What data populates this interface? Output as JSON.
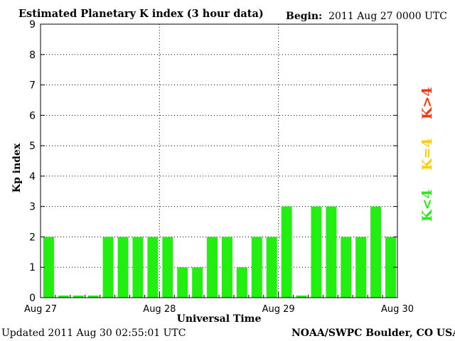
{
  "header": {
    "title": "Estimated Planetary K index (3 hour data)",
    "begin_label": "Begin:",
    "begin_value": "2011 Aug 27 0000 UTC"
  },
  "footer": {
    "updated_label": "Updated",
    "updated_value": "2011 Aug 30 02:55:01 UTC",
    "credit": "NOAA/SWPC Boulder, CO USA"
  },
  "legend": [
    {
      "label": "K<4",
      "color": "#22ee11"
    },
    {
      "label": "K=4",
      "color": "#ffcc00"
    },
    {
      "label": "K>4",
      "color": "#ff3300"
    }
  ],
  "chart_data": {
    "type": "bar",
    "title": "Estimated Planetary K index (3 hour data)",
    "xlabel": "Universal Time",
    "ylabel": "Kp index",
    "ylim": [
      0,
      9
    ],
    "yticks": [
      0,
      1,
      2,
      3,
      4,
      5,
      6,
      7,
      8,
      9
    ],
    "xtick_labels": [
      "Aug 27",
      "Aug 28",
      "Aug 29",
      "Aug 30"
    ],
    "grid": true,
    "categories": [
      "Aug 27 00",
      "Aug 27 03",
      "Aug 27 06",
      "Aug 27 09",
      "Aug 27 12",
      "Aug 27 15",
      "Aug 27 18",
      "Aug 27 21",
      "Aug 28 00",
      "Aug 28 03",
      "Aug 28 06",
      "Aug 28 09",
      "Aug 28 12",
      "Aug 28 15",
      "Aug 28 18",
      "Aug 28 21",
      "Aug 29 00",
      "Aug 29 03",
      "Aug 29 06",
      "Aug 29 09",
      "Aug 29 12",
      "Aug 29 15",
      "Aug 29 18",
      "Aug 29 21"
    ],
    "values": [
      2,
      0.07,
      0.07,
      0.07,
      2,
      2,
      2,
      2,
      2,
      1,
      1,
      2,
      2,
      1,
      2,
      2,
      3,
      0.07,
      3,
      3,
      2,
      2,
      3,
      2
    ],
    "bar_color": "#22ee11"
  }
}
